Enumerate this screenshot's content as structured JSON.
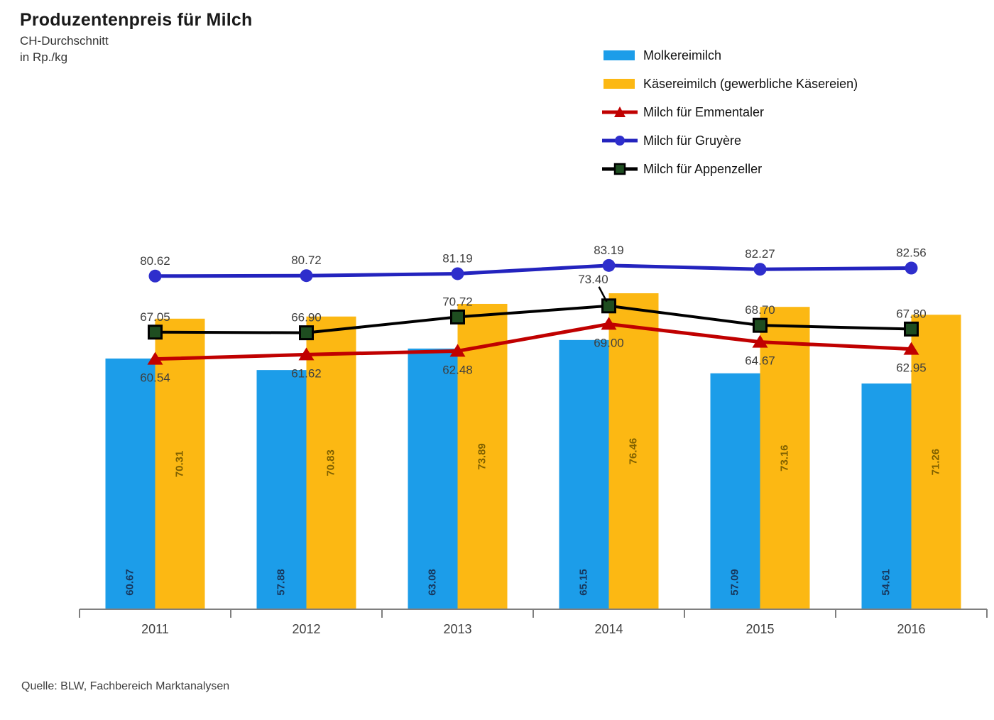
{
  "header": {
    "title": "Produzentenpreis für Milch",
    "subtitle_line1": "CH-Durchschnitt",
    "subtitle_line2": "in Rp./kg"
  },
  "footer": {
    "source": "Quelle: BLW, Fachbereich Marktanalysen"
  },
  "legend": {
    "position": "top-right",
    "items": [
      {
        "label": "Molkereimilch",
        "swatch": "bar",
        "color": "#1C9DE9"
      },
      {
        "label": "Käsereimilch (gewerbliche Käsereien)",
        "swatch": "bar",
        "color": "#FCB813"
      },
      {
        "label": "Milch für Emmentaler",
        "swatch": "line-triangle",
        "color": "#C00000",
        "marker_fill": "#C00000"
      },
      {
        "label": "Milch für Gruyère",
        "swatch": "line-circle",
        "color": "#2323BE",
        "marker_fill": "#2E2ECC"
      },
      {
        "label": "Milch für Appenzeller",
        "swatch": "line-square",
        "color": "#000000",
        "marker_fill": "#1E4D20"
      }
    ]
  },
  "chart_data": {
    "type": "combo-bar-line",
    "title": "Produzentenpreis für Milch",
    "subtitle": "CH-Durchschnitt",
    "unit": "Rp./kg",
    "categories": [
      "2011",
      "2012",
      "2013",
      "2014",
      "2015",
      "2016"
    ],
    "bar_series": [
      {
        "name": "Molkereimilch",
        "color": "#1C9DE9",
        "label_color": "#17375D",
        "label_position": "inside-base",
        "values": [
          60.67,
          57.88,
          63.08,
          65.15,
          57.09,
          54.61
        ]
      },
      {
        "name": "Käsereimilch (gewerbliche Käsereien)",
        "color": "#FCB813",
        "label_color": "#7F6000",
        "label_position": "inside-center",
        "values": [
          70.31,
          70.83,
          73.89,
          76.46,
          73.16,
          71.26
        ]
      }
    ],
    "line_series": [
      {
        "name": "Milch für Emmentaler",
        "color": "#C00000",
        "marker": "triangle",
        "marker_fill": "#C00000",
        "label_placement": "below",
        "values": [
          60.54,
          61.62,
          62.48,
          69.0,
          64.67,
          62.95
        ]
      },
      {
        "name": "Milch für Gruyère",
        "color": "#2323BE",
        "marker": "circle",
        "marker_fill": "#2E2ECC",
        "label_placement": "above",
        "values": [
          80.62,
          80.72,
          81.19,
          83.19,
          82.27,
          82.56
        ]
      },
      {
        "name": "Milch für Appenzeller",
        "color": "#000000",
        "marker": "square",
        "marker_fill": "#1E4D20",
        "label_placement": "above",
        "values": [
          67.05,
          66.9,
          70.72,
          73.4,
          68.7,
          67.8
        ],
        "label_overrides": {
          "3": {
            "dx": -22,
            "dy": -16,
            "leader": true
          }
        }
      }
    ],
    "ylim": [
      0,
      88
    ],
    "grid": false,
    "y_axis_visible": false,
    "legend_position": "top-right",
    "value_decimals": 2,
    "label_color_lines": "#3f3f3f",
    "axis_color": "#7f7f7f",
    "tick_label_color": "#3f3f3f"
  }
}
